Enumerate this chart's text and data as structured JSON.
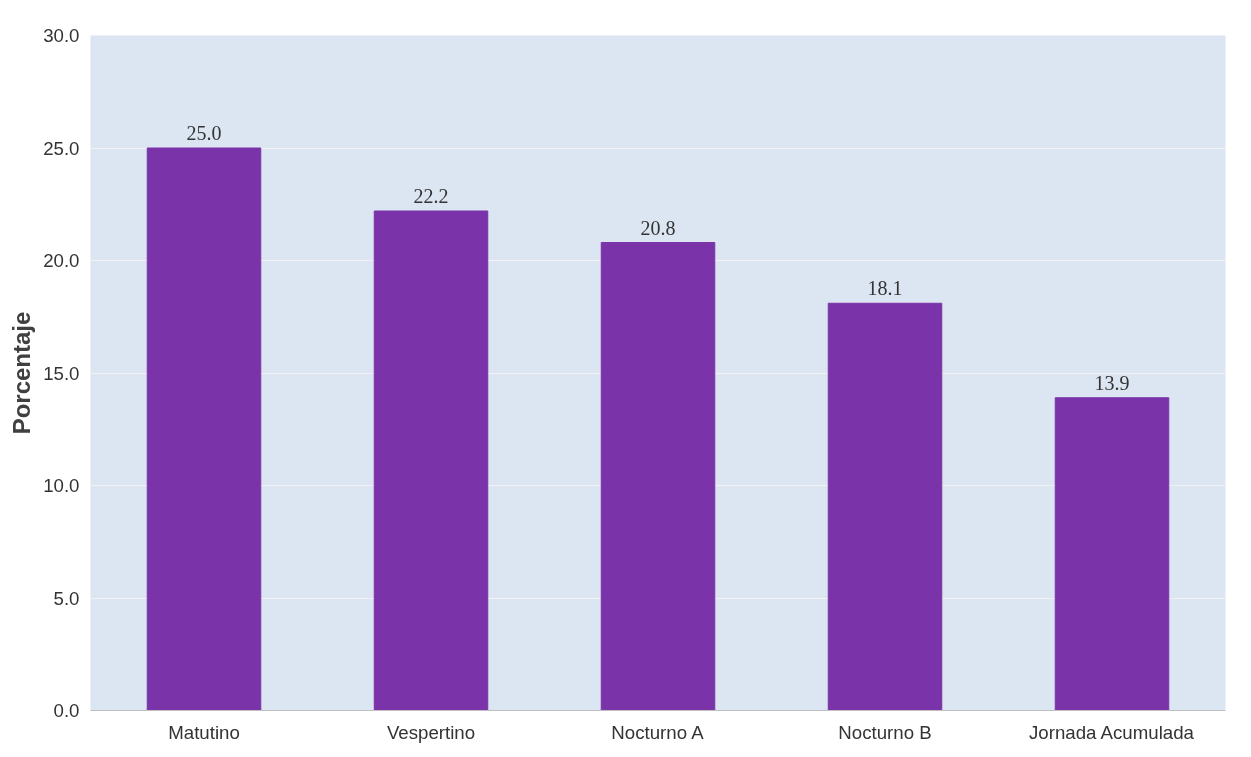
{
  "chart_data": {
    "type": "bar",
    "ylabel": "Porcentaje",
    "categories": [
      "Matutino",
      "Vespertino",
      "Nocturno A",
      "Nocturno B",
      "Jornada Acumulada"
    ],
    "values": [
      25.0,
      22.2,
      20.8,
      18.1,
      13.9
    ],
    "value_labels": [
      "25.0",
      "22.2",
      "20.8",
      "18.1",
      "13.9"
    ],
    "color": "#7a33a8",
    "ylim": [
      0,
      30
    ],
    "yticks": [
      {
        "value": 0,
        "label": "0.0"
      },
      {
        "value": 5,
        "label": "5.0"
      },
      {
        "value": 10,
        "label": "10.0"
      },
      {
        "value": 15,
        "label": "15.0"
      },
      {
        "value": 20,
        "label": "20.0"
      },
      {
        "value": 25,
        "label": "25.0"
      },
      {
        "value": 30,
        "label": "30.0"
      }
    ],
    "grid": "y"
  }
}
